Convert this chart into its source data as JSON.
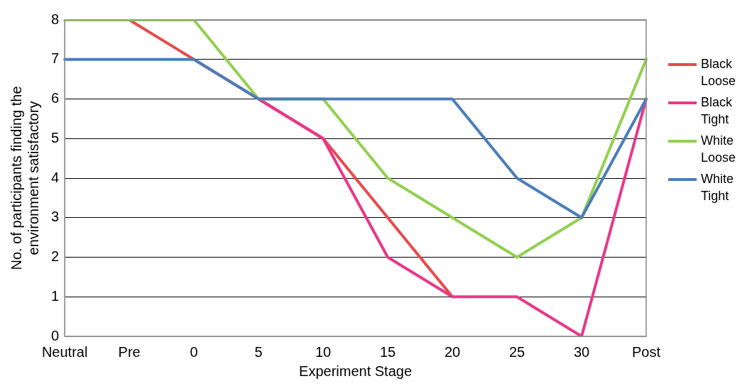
{
  "chart_data": {
    "type": "line",
    "xlabel": "Experiment Stage",
    "ylabel": "No. of participants finding the\nenvironment satisfactory",
    "categories": [
      "Neutral",
      "Pre",
      "0",
      "5",
      "10",
      "15",
      "20",
      "25",
      "30",
      "Post"
    ],
    "series": [
      {
        "name": "Black Loose",
        "color": "#e84a4a",
        "values": [
          8,
          8,
          7,
          6,
          5,
          3,
          1,
          null,
          null,
          null
        ]
      },
      {
        "name": "Black Tight",
        "color": "#e8388a",
        "values": [
          null,
          null,
          null,
          6,
          5,
          2,
          1,
          1,
          0,
          6
        ]
      },
      {
        "name": "White Loose",
        "color": "#92d050",
        "values": [
          8,
          8,
          8,
          6,
          6,
          4,
          3,
          2,
          3,
          7
        ]
      },
      {
        "name": "White Tight",
        "color": "#4a7ebb",
        "values": [
          7,
          7,
          7,
          6,
          6,
          6,
          6,
          4,
          3,
          6
        ]
      }
    ],
    "ylim": [
      0,
      8
    ],
    "yticks": [
      0,
      1,
      2,
      3,
      4,
      5,
      6,
      7,
      8
    ],
    "grid": "y",
    "legend": "right",
    "marker": "none",
    "line_style": "solid"
  }
}
